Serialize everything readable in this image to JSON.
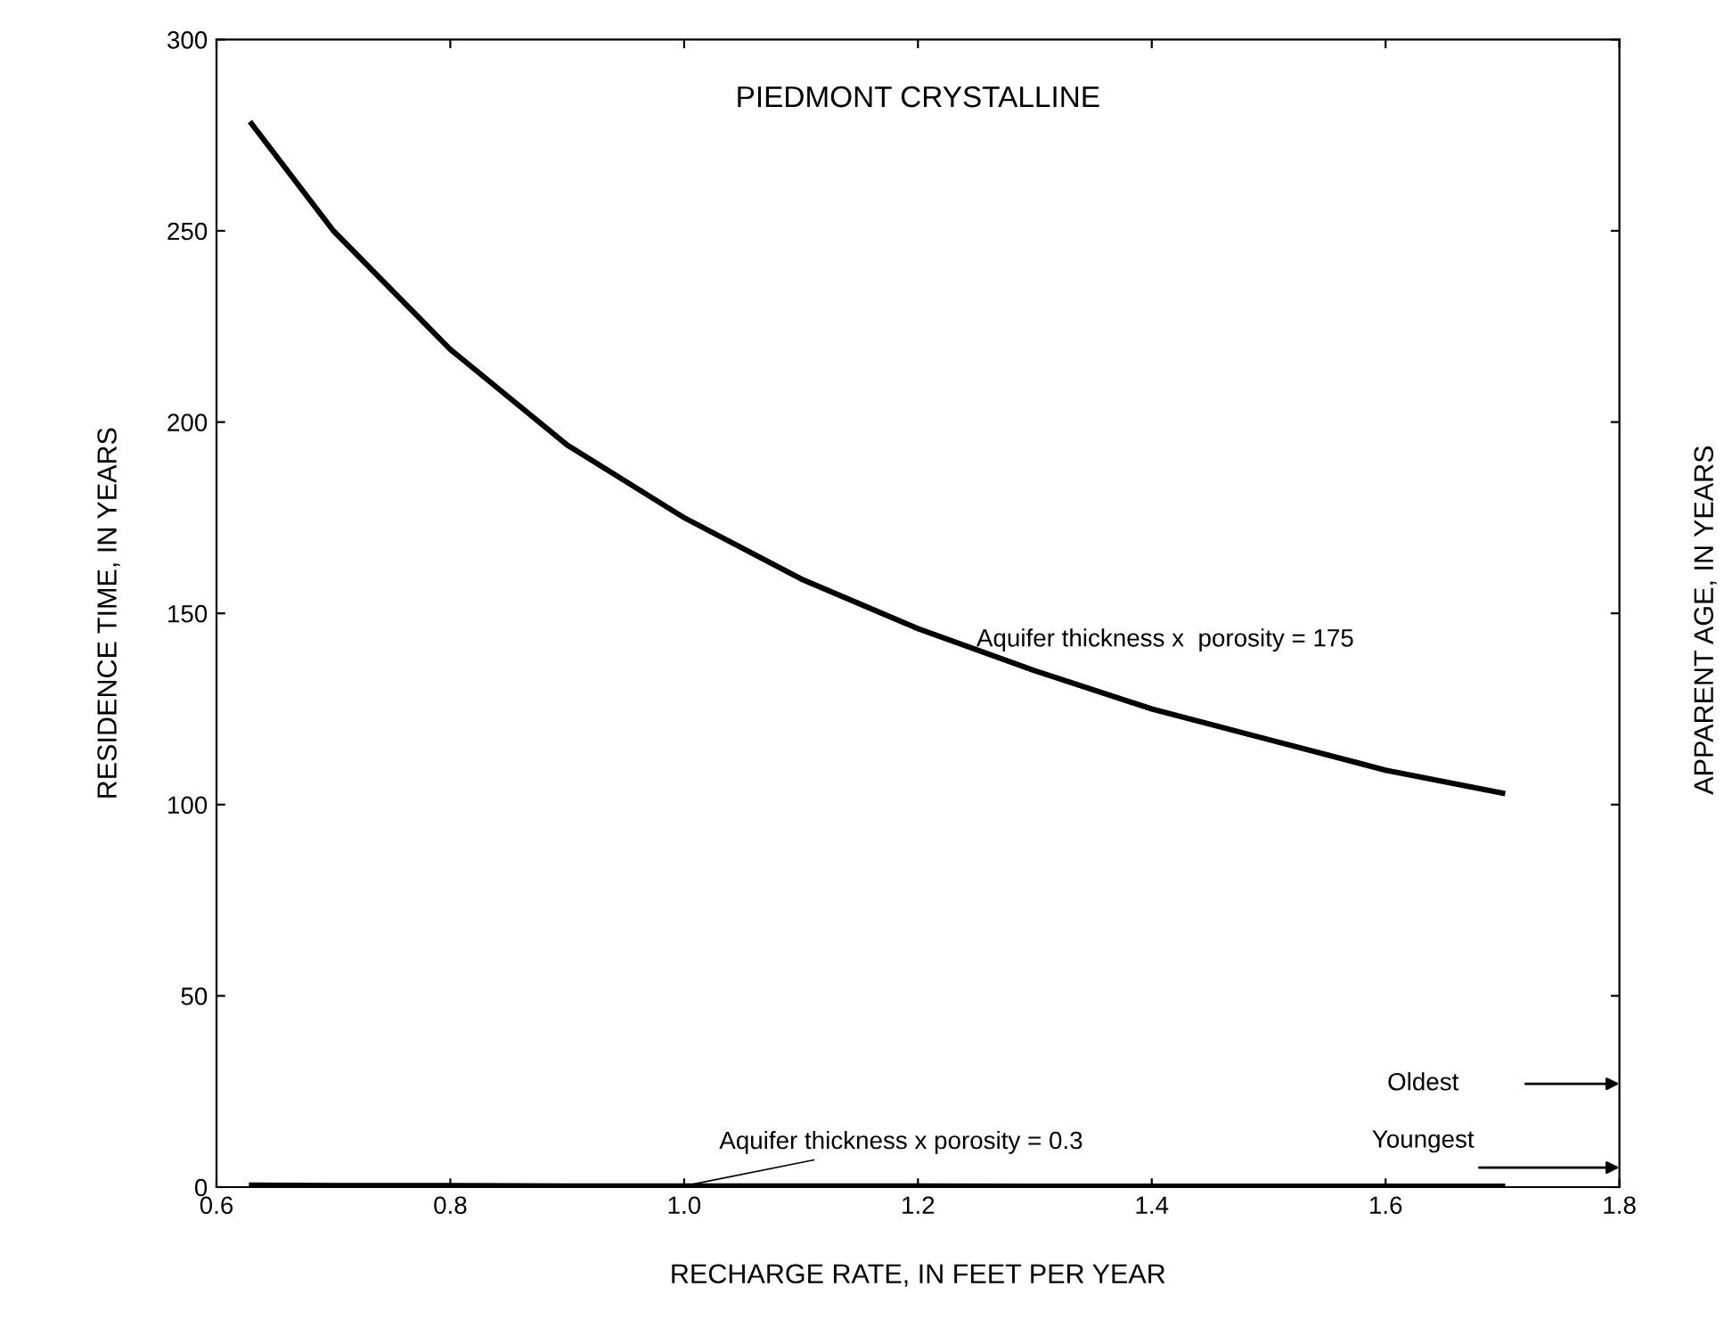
{
  "chart_data": {
    "type": "line",
    "title": "PIEDMONT CRYSTALLINE",
    "xlabel": "RECHARGE RATE, IN FEET PER YEAR",
    "ylabel": "RESIDENCE TIME, IN YEARS",
    "y2label": "APPARENT AGE, IN YEARS",
    "x": [
      0.63,
      0.7,
      0.8,
      0.9,
      1.0,
      1.1,
      1.2,
      1.3,
      1.4,
      1.5,
      1.6,
      1.7
    ],
    "series": [
      {
        "color": "#000000",
        "values": [
          278,
          250,
          219,
          194,
          175,
          159,
          146,
          135,
          125,
          117,
          109,
          103
        ]
      },
      {
        "color": "#000000",
        "values": [
          0.5,
          0.4,
          0.4,
          0.3,
          0.3,
          0.3,
          0.3,
          0.2,
          0.2,
          0.2,
          0.2,
          0.2
        ]
      }
    ],
    "xlim": [
      0.6,
      1.8
    ],
    "xticks": [
      0.6,
      {
        "value": 0.8,
        "label": "0.8"
      },
      {
        "value": 1.0,
        "label": "1.0"
      },
      1.2,
      1.4,
      1.6,
      1.8
    ],
    "ylim": [
      0,
      300
    ],
    "yticks": [
      0,
      50,
      100,
      150,
      200,
      250,
      300
    ],
    "annotations": [
      {
        "text": "Aquifer thickness x  porosity = 175",
        "x": 1.25,
        "y": 140
      },
      {
        "text": "Aquifer thickness x porosity = 0.3",
        "x": 1.0,
        "y": 0.3
      },
      "Oldest",
      "Youngest"
    ],
    "grid": false,
    "legend": false,
    "marker": "none",
    "line_style": "solid"
  }
}
